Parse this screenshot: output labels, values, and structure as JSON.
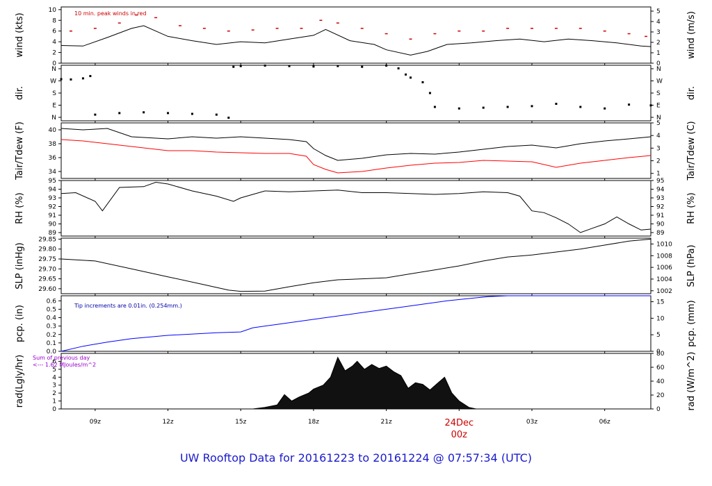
{
  "footer": {
    "title": "UW Rooftop Data for 20161223  to  20161224 @ 07:57:34  (UTC)"
  },
  "colors": {
    "frame": "#000000",
    "main_line": "#000000",
    "dew_line": "#ff0000",
    "peak_marks": "#cc0000",
    "pcp_line": "#0000ff",
    "pcp_note": "#0000aa",
    "rad_note": "#9900cc",
    "date_label": "#cc0000"
  },
  "time_axis": {
    "start_hour": 7.6,
    "end_hour": 31.9,
    "ticks": [
      {
        "hour": 9,
        "label": "09z"
      },
      {
        "hour": 12,
        "label": "12z"
      },
      {
        "hour": 15,
        "label": "15z"
      },
      {
        "hour": 18,
        "label": "18z"
      },
      {
        "hour": 21,
        "label": "21z"
      },
      {
        "hour": 24,
        "label": "00z"
      },
      {
        "hour": 27,
        "label": "03z"
      },
      {
        "hour": 30,
        "label": "06z"
      }
    ],
    "date_label": "24Dec",
    "date_hour": 24
  },
  "chart_data": [
    {
      "id": "wind",
      "type": "line",
      "ylabel": "wind (kts)",
      "ylabel_right": "wind (m/s)",
      "annotation": "10 min. peak winds in red",
      "ylim": [
        0,
        10.5
      ],
      "yticks": [
        0,
        2,
        4,
        6,
        8,
        10
      ],
      "right_ylim": [
        0,
        5.4
      ],
      "right_yticks": [
        0,
        1,
        2,
        3,
        4,
        5
      ],
      "x": [
        7.6,
        8.5,
        9.5,
        10.5,
        11.0,
        12.0,
        13.0,
        14.0,
        15.0,
        16.0,
        17.0,
        18.0,
        18.5,
        19.5,
        20.5,
        21.0,
        22.0,
        22.7,
        23.5,
        24.5,
        25.5,
        26.5,
        27.5,
        28.5,
        29.5,
        30.5,
        31.5,
        31.9
      ],
      "y": [
        3.3,
        3.2,
        4.8,
        6.5,
        7.0,
        5.0,
        4.2,
        3.5,
        4.0,
        3.8,
        4.5,
        5.2,
        6.3,
        4.2,
        3.5,
        2.5,
        1.5,
        2.2,
        3.5,
        3.8,
        4.2,
        4.5,
        4.0,
        4.5,
        4.2,
        3.8,
        3.2,
        3.1
      ],
      "peak_x": [
        8.0,
        9.0,
        10.0,
        10.7,
        11.5,
        12.5,
        13.5,
        14.5,
        15.5,
        16.5,
        17.5,
        18.3,
        19.0,
        20.0,
        21.0,
        22.0,
        23.0,
        24.0,
        25.0,
        26.0,
        27.0,
        28.0,
        29.0,
        30.0,
        31.0,
        31.7
      ],
      "peak_y": [
        6.0,
        6.5,
        7.5,
        9.0,
        8.5,
        7.0,
        6.5,
        6.0,
        6.2,
        6.5,
        6.5,
        8.0,
        7.5,
        6.5,
        5.5,
        4.5,
        5.5,
        6.0,
        6.0,
        6.5,
        6.5,
        6.5,
        6.5,
        6.0,
        5.5,
        5.0
      ]
    },
    {
      "id": "dir",
      "type": "scatter",
      "ylabel": "dir.",
      "ylabel_right": "dir.",
      "yticks_labels": [
        "N",
        "E",
        "S",
        "W",
        "N"
      ],
      "ylim": [
        0,
        360
      ],
      "x": [
        7.6,
        8.0,
        8.5,
        8.8,
        9.0,
        10.0,
        11.0,
        12.0,
        13.0,
        14.0,
        14.5,
        14.7,
        15.0,
        16.0,
        17.0,
        18.0,
        19.0,
        20.0,
        21.0,
        21.5,
        21.8,
        22.0,
        22.5,
        22.8,
        23.0,
        24.0,
        25.0,
        26.0,
        27.0,
        28.0,
        29.0,
        30.0,
        31.0,
        31.9
      ],
      "y": [
        270,
        268,
        275,
        290,
        40,
        50,
        55,
        50,
        45,
        40,
        20,
        350,
        355,
        358,
        355,
        352,
        355,
        350,
        358,
        340,
        300,
        280,
        250,
        180,
        90,
        80,
        85,
        90,
        95,
        110,
        90,
        80,
        105,
        100
      ]
    },
    {
      "id": "temp",
      "type": "line",
      "ylabel": "Tair/Tdew (F)",
      "ylabel_right": "Tair/Tdew (C)",
      "ylim": [
        33.0,
        41.0
      ],
      "yticks": [
        34,
        36,
        38,
        40
      ],
      "right_ylim": [
        0.6,
        5.0
      ],
      "right_yticks": [
        1,
        2,
        3,
        4,
        5
      ],
      "series": [
        {
          "name": "Tair",
          "x": [
            7.6,
            8.5,
            9.5,
            10.5,
            12.0,
            13.0,
            14.0,
            15.0,
            16.0,
            17.0,
            17.7,
            18.0,
            18.5,
            19.0,
            20.0,
            21.0,
            22.0,
            23.0,
            24.0,
            25.0,
            26.0,
            27.0,
            28.0,
            29.0,
            30.0,
            31.0,
            31.9
          ],
          "y": [
            40.2,
            40.0,
            40.2,
            39.0,
            38.7,
            39.0,
            38.8,
            39.0,
            38.8,
            38.6,
            38.3,
            37.3,
            36.3,
            35.6,
            35.9,
            36.4,
            36.6,
            36.5,
            36.8,
            37.2,
            37.6,
            37.8,
            37.4,
            38.0,
            38.4,
            38.7,
            39.0
          ]
        },
        {
          "name": "Tdew",
          "x": [
            7.6,
            8.5,
            9.5,
            10.5,
            12.0,
            13.0,
            14.0,
            15.0,
            16.0,
            17.0,
            17.7,
            18.0,
            18.5,
            19.0,
            20.0,
            21.0,
            22.0,
            23.0,
            24.0,
            25.0,
            26.0,
            27.0,
            28.0,
            29.0,
            30.0,
            31.0,
            31.9
          ],
          "y": [
            38.6,
            38.4,
            38.0,
            37.6,
            37.0,
            37.0,
            36.8,
            36.7,
            36.6,
            36.6,
            36.2,
            35.0,
            34.3,
            33.8,
            34.0,
            34.5,
            34.9,
            35.2,
            35.3,
            35.6,
            35.5,
            35.4,
            34.6,
            35.2,
            35.6,
            36.0,
            36.3
          ]
        }
      ]
    },
    {
      "id": "rh",
      "type": "line",
      "ylabel": "RH (%)",
      "ylabel_right": "RH (%)",
      "ylim": [
        88.6,
        95.0
      ],
      "yticks": [
        89,
        90,
        91,
        92,
        93,
        94,
        95
      ],
      "x": [
        7.6,
        8.2,
        9.0,
        9.3,
        10.0,
        11.0,
        11.5,
        12.0,
        13.0,
        14.0,
        14.7,
        15.0,
        16.0,
        17.0,
        18.0,
        19.0,
        20.0,
        21.0,
        22.0,
        23.0,
        24.0,
        25.0,
        26.0,
        26.5,
        27.0,
        27.5,
        28.0,
        28.5,
        29.0,
        29.5,
        30.0,
        30.5,
        31.0,
        31.5,
        31.9
      ],
      "y": [
        93.5,
        93.6,
        92.6,
        91.5,
        94.2,
        94.3,
        94.8,
        94.6,
        93.8,
        93.2,
        92.6,
        93.0,
        93.8,
        93.7,
        93.8,
        93.9,
        93.6,
        93.6,
        93.5,
        93.4,
        93.5,
        93.7,
        93.6,
        93.2,
        91.5,
        91.3,
        90.7,
        90.0,
        89.0,
        89.5,
        90.0,
        90.8,
        90.0,
        89.3,
        89.4
      ]
    },
    {
      "id": "slp",
      "type": "line",
      "ylabel": "SLP (inHg)",
      "ylabel_right": "SLP (hPa)",
      "ylim": [
        29.575,
        29.855
      ],
      "yticks": [
        29.6,
        29.65,
        29.7,
        29.75,
        29.8,
        29.85
      ],
      "ytick_labels": [
        "29.60",
        "29.65",
        "29.70",
        "29.75",
        "29.80",
        "29.85"
      ],
      "right_ylim": [
        1001.5,
        1011.0
      ],
      "right_yticks": [
        1002,
        1004,
        1006,
        1008,
        1010
      ],
      "x": [
        7.6,
        9.0,
        10.5,
        12.0,
        13.5,
        14.5,
        15.0,
        16.0,
        17.0,
        18.0,
        19.0,
        20.0,
        21.0,
        22.0,
        23.0,
        24.0,
        25.0,
        26.0,
        27.0,
        28.0,
        29.0,
        30.0,
        31.0,
        31.9
      ],
      "y": [
        29.75,
        29.74,
        29.7,
        29.66,
        29.62,
        29.593,
        29.587,
        29.588,
        29.61,
        29.63,
        29.645,
        29.65,
        29.655,
        29.675,
        29.695,
        29.715,
        29.74,
        29.76,
        29.77,
        29.785,
        29.8,
        29.82,
        29.84,
        29.85
      ]
    },
    {
      "id": "pcp",
      "type": "line",
      "ylabel": "pcp. (in)",
      "ylabel_right": "pcp. (mm)",
      "annotation": "Tip increments are 0.01in. (0.254mm.)",
      "ylim": [
        0,
        0.66
      ],
      "yticks": [
        0,
        0.1,
        0.2,
        0.3,
        0.4,
        0.5,
        0.6
      ],
      "ytick_labels": [
        "0.0",
        "0.1",
        "0.2",
        "0.3",
        "0.4",
        "0.5",
        "0.6"
      ],
      "right_ylim": [
        0,
        16.8
      ],
      "right_yticks": [
        0,
        5,
        10,
        15
      ],
      "x": [
        7.6,
        8.5,
        9.5,
        10.5,
        12.0,
        14.0,
        15.0,
        15.5,
        16.5,
        17.5,
        18.5,
        19.5,
        20.5,
        21.5,
        22.5,
        23.5,
        24.5,
        25.2,
        26.0,
        27.0,
        28.0,
        29.0,
        30.0,
        31.0,
        31.9
      ],
      "y": [
        0.0,
        0.06,
        0.11,
        0.15,
        0.19,
        0.22,
        0.23,
        0.28,
        0.32,
        0.36,
        0.4,
        0.44,
        0.48,
        0.52,
        0.56,
        0.6,
        0.63,
        0.65,
        0.66,
        0.66,
        0.66,
        0.66,
        0.66,
        0.66,
        0.66
      ]
    },
    {
      "id": "rad",
      "type": "area",
      "ylabel": "rad(Lgly/hr)",
      "ylabel_right": "rad (W/m^2)",
      "annotation": [
        "Sum of previous day",
        "<--- 1.62 MJoules/m^2"
      ],
      "ylim": [
        0,
        7.0
      ],
      "yticks": [
        0,
        1,
        2,
        3,
        4,
        5,
        6
      ],
      "right_ylim": [
        0,
        80
      ],
      "right_yticks": [
        0,
        20,
        40,
        60,
        80
      ],
      "x": [
        7.6,
        15.5,
        16.0,
        16.5,
        16.8,
        17.1,
        17.4,
        17.8,
        18.0,
        18.4,
        18.7,
        19.0,
        19.3,
        19.6,
        19.8,
        20.1,
        20.4,
        20.7,
        21.0,
        21.3,
        21.6,
        21.9,
        22.2,
        22.5,
        22.8,
        23.1,
        23.4,
        23.7,
        24.0,
        24.4,
        24.7,
        31.9
      ],
      "y": [
        0,
        0,
        0.2,
        0.5,
        1.8,
        1.0,
        1.5,
        2.0,
        2.5,
        3.0,
        4.0,
        6.5,
        4.8,
        5.4,
        6.0,
        5.0,
        5.6,
        5.1,
        5.4,
        4.7,
        4.2,
        2.6,
        3.3,
        3.1,
        2.4,
        3.2,
        4.0,
        2.0,
        1.0,
        0.2,
        0,
        0
      ]
    }
  ]
}
